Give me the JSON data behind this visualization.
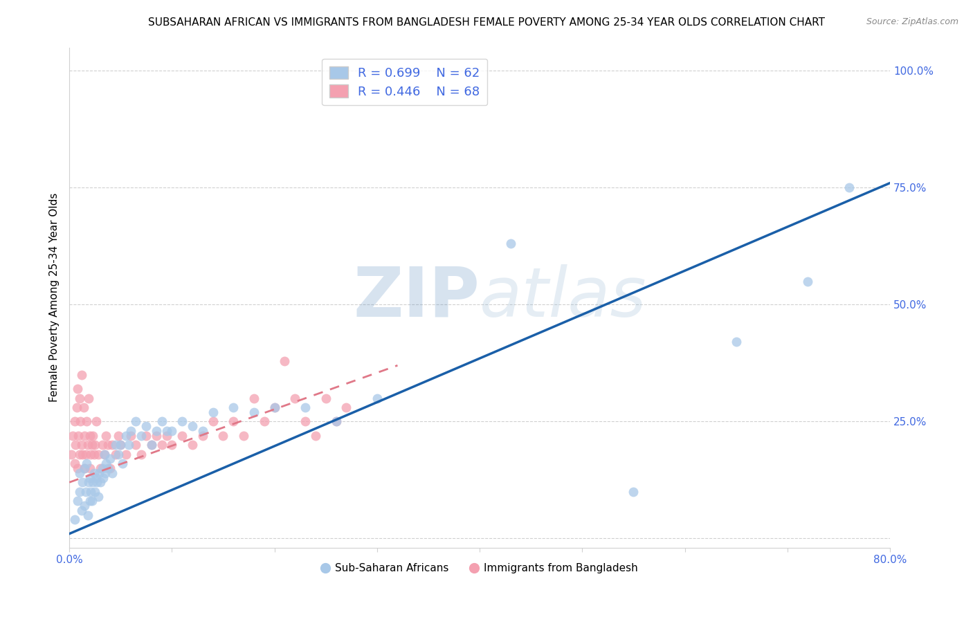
{
  "title": "SUBSAHARAN AFRICAN VS IMMIGRANTS FROM BANGLADESH FEMALE POVERTY AMONG 25-34 YEAR OLDS CORRELATION CHART",
  "source": "Source: ZipAtlas.com",
  "ylabel": "Female Poverty Among 25-34 Year Olds",
  "xlim": [
    0.0,
    0.8
  ],
  "ylim": [
    -0.02,
    1.05
  ],
  "yticks": [
    0.0,
    0.25,
    0.5,
    0.75,
    1.0
  ],
  "ytick_labels": [
    "",
    "25.0%",
    "50.0%",
    "75.0%",
    "100.0%"
  ],
  "xticks": [
    0.0,
    0.1,
    0.2,
    0.3,
    0.4,
    0.5,
    0.6,
    0.7,
    0.8
  ],
  "xtick_labels": [
    "0.0%",
    "",
    "",
    "",
    "",
    "",
    "",
    "",
    "80.0%"
  ],
  "blue_R": 0.699,
  "blue_N": 62,
  "pink_R": 0.446,
  "pink_N": 68,
  "blue_color": "#a8c8e8",
  "pink_color": "#f4a0b0",
  "blue_line_color": "#1a5fa8",
  "pink_line_color": "#e07888",
  "legend_label_blue": "Sub-Saharan Africans",
  "legend_label_pink": "Immigrants from Bangladesh",
  "watermark_zip": "ZIP",
  "watermark_atlas": "atlas",
  "title_fontsize": 11,
  "axis_color": "#4169e1",
  "blue_x": [
    0.005,
    0.008,
    0.01,
    0.01,
    0.012,
    0.013,
    0.015,
    0.015,
    0.016,
    0.017,
    0.018,
    0.019,
    0.02,
    0.02,
    0.021,
    0.022,
    0.023,
    0.024,
    0.025,
    0.026,
    0.027,
    0.028,
    0.029,
    0.03,
    0.032,
    0.033,
    0.034,
    0.035,
    0.036,
    0.038,
    0.04,
    0.042,
    0.045,
    0.048,
    0.05,
    0.052,
    0.055,
    0.058,
    0.06,
    0.065,
    0.07,
    0.075,
    0.08,
    0.085,
    0.09,
    0.095,
    0.1,
    0.11,
    0.12,
    0.13,
    0.14,
    0.16,
    0.18,
    0.2,
    0.23,
    0.26,
    0.3,
    0.43,
    0.55,
    0.65,
    0.72,
    0.76
  ],
  "blue_y": [
    0.04,
    0.08,
    0.1,
    0.14,
    0.06,
    0.12,
    0.07,
    0.15,
    0.1,
    0.16,
    0.05,
    0.12,
    0.08,
    0.13,
    0.1,
    0.08,
    0.12,
    0.14,
    0.1,
    0.13,
    0.12,
    0.09,
    0.14,
    0.12,
    0.15,
    0.13,
    0.18,
    0.14,
    0.16,
    0.15,
    0.17,
    0.14,
    0.2,
    0.18,
    0.2,
    0.16,
    0.22,
    0.2,
    0.23,
    0.25,
    0.22,
    0.24,
    0.2,
    0.23,
    0.25,
    0.23,
    0.23,
    0.25,
    0.24,
    0.23,
    0.27,
    0.28,
    0.27,
    0.28,
    0.28,
    0.25,
    0.3,
    0.63,
    0.1,
    0.42,
    0.55,
    0.75
  ],
  "pink_x": [
    0.002,
    0.003,
    0.005,
    0.005,
    0.006,
    0.007,
    0.008,
    0.008,
    0.009,
    0.01,
    0.01,
    0.011,
    0.012,
    0.012,
    0.013,
    0.014,
    0.015,
    0.015,
    0.016,
    0.017,
    0.018,
    0.019,
    0.02,
    0.02,
    0.021,
    0.022,
    0.023,
    0.024,
    0.025,
    0.026,
    0.028,
    0.03,
    0.032,
    0.034,
    0.036,
    0.038,
    0.04,
    0.042,
    0.045,
    0.048,
    0.05,
    0.055,
    0.06,
    0.065,
    0.07,
    0.075,
    0.08,
    0.085,
    0.09,
    0.095,
    0.1,
    0.11,
    0.12,
    0.13,
    0.14,
    0.15,
    0.16,
    0.17,
    0.18,
    0.19,
    0.2,
    0.21,
    0.22,
    0.23,
    0.24,
    0.25,
    0.26,
    0.27
  ],
  "pink_y": [
    0.18,
    0.22,
    0.16,
    0.25,
    0.2,
    0.28,
    0.15,
    0.32,
    0.22,
    0.18,
    0.3,
    0.25,
    0.2,
    0.35,
    0.18,
    0.28,
    0.15,
    0.22,
    0.18,
    0.25,
    0.2,
    0.3,
    0.15,
    0.22,
    0.18,
    0.2,
    0.22,
    0.18,
    0.2,
    0.25,
    0.18,
    0.15,
    0.2,
    0.18,
    0.22,
    0.2,
    0.15,
    0.2,
    0.18,
    0.22,
    0.2,
    0.18,
    0.22,
    0.2,
    0.18,
    0.22,
    0.2,
    0.22,
    0.2,
    0.22,
    0.2,
    0.22,
    0.2,
    0.22,
    0.25,
    0.22,
    0.25,
    0.22,
    0.3,
    0.25,
    0.28,
    0.38,
    0.3,
    0.25,
    0.22,
    0.3,
    0.25,
    0.28
  ],
  "blue_line_x": [
    0.0,
    0.8
  ],
  "blue_line_y": [
    0.01,
    0.76
  ],
  "pink_line_x": [
    0.0,
    0.32
  ],
  "pink_line_y": [
    0.12,
    0.37
  ]
}
